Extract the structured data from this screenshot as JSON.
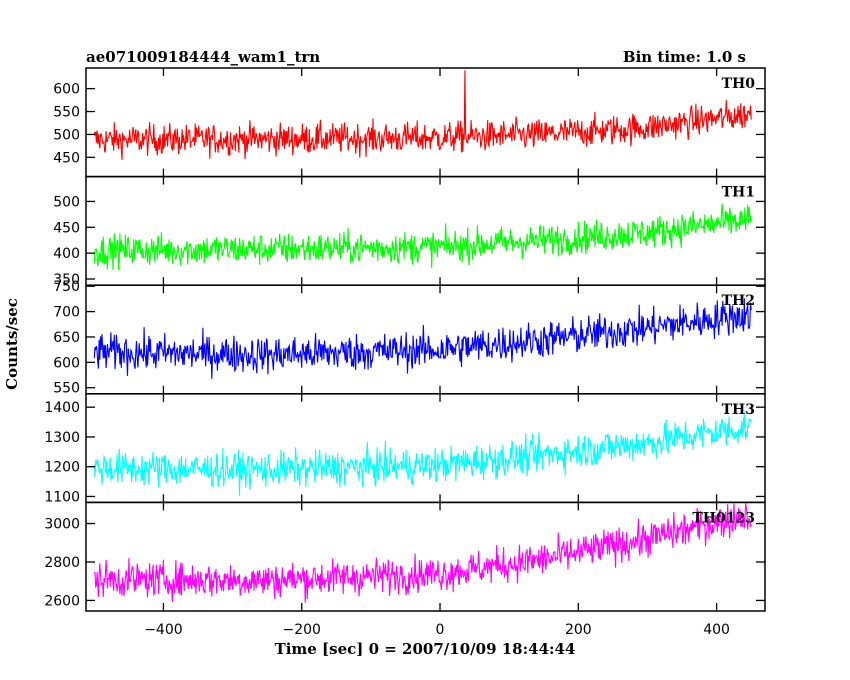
{
  "header": {
    "title": "ae071009184444_wam1_trn",
    "bin_time": "Bin time: 1.0 s"
  },
  "chart_data": {
    "type": "line",
    "xlabel": "Time [sec] 0 = 2007/10/09 18:44:44",
    "ylabel": "Counts/sec",
    "xlim": [
      -512,
      470
    ],
    "x_ticks": [
      -400,
      -200,
      0,
      200,
      400
    ],
    "x_range": [
      -500,
      450
    ],
    "panels": [
      {
        "name": "TH0",
        "color": "#ff0000",
        "ylim": [
          408,
          645
        ],
        "y_ticks": [
          450,
          500,
          550,
          600
        ],
        "trend": [
          [
            -500,
            488
          ],
          [
            -250,
            490
          ],
          [
            0,
            493
          ],
          [
            150,
            500
          ],
          [
            300,
            515
          ],
          [
            450,
            545
          ]
        ],
        "noise": 24,
        "spikes": [
          [
            36,
            640
          ]
        ]
      },
      {
        "name": "TH1",
        "color": "#00ff00",
        "ylim": [
          338,
          548
        ],
        "y_ticks": [
          350,
          400,
          450,
          500
        ],
        "trend": [
          [
            -500,
            405
          ],
          [
            -250,
            408
          ],
          [
            0,
            412
          ],
          [
            150,
            425
          ],
          [
            300,
            440
          ],
          [
            450,
            465
          ]
        ],
        "noise": 22,
        "spikes": []
      },
      {
        "name": "TH2",
        "color": "#0000ff",
        "ylim": [
          538,
          752
        ],
        "y_ticks": [
          550,
          600,
          650,
          700,
          750
        ],
        "trend": [
          [
            -500,
            620
          ],
          [
            -250,
            615
          ],
          [
            0,
            625
          ],
          [
            150,
            645
          ],
          [
            300,
            668
          ],
          [
            450,
            695
          ]
        ],
        "noise": 26,
        "spikes": []
      },
      {
        "name": "TH3",
        "color": "#00ffff",
        "ylim": [
          1080,
          1445
        ],
        "y_ticks": [
          1100,
          1200,
          1300,
          1400
        ],
        "trend": [
          [
            -500,
            1195
          ],
          [
            -250,
            1190
          ],
          [
            0,
            1205
          ],
          [
            150,
            1240
          ],
          [
            300,
            1280
          ],
          [
            450,
            1335
          ]
        ],
        "noise": 42,
        "spikes": []
      },
      {
        "name": "TH0123",
        "color": "#ff00ff",
        "ylim": [
          2545,
          3110
        ],
        "y_ticks": [
          2600,
          2800,
          3000
        ],
        "trend": [
          [
            -500,
            2710
          ],
          [
            -250,
            2705
          ],
          [
            0,
            2740
          ],
          [
            150,
            2815
          ],
          [
            300,
            2920
          ],
          [
            450,
            3050
          ]
        ],
        "noise": 65,
        "spikes": []
      }
    ]
  }
}
